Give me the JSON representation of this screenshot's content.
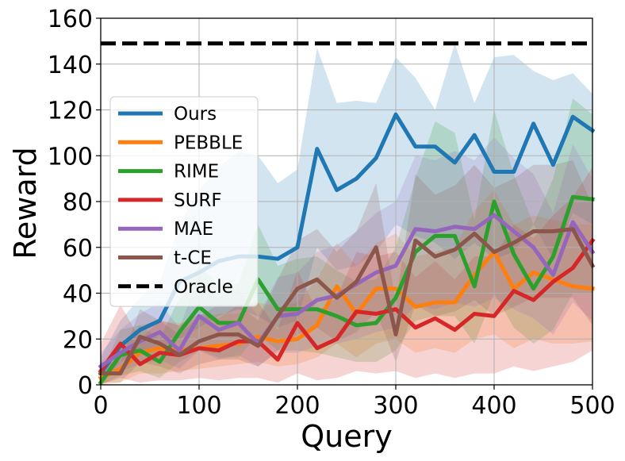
{
  "chart_data": {
    "type": "line",
    "xlabel": "Query",
    "ylabel": "Reward",
    "xlim": [
      0,
      500
    ],
    "ylim": [
      0,
      160
    ],
    "xticks": [
      "0",
      "100",
      "200",
      "300",
      "400",
      "500"
    ],
    "yticks": [
      "0",
      "20",
      "40",
      "60",
      "80",
      "100",
      "120",
      "140",
      "160"
    ],
    "grid": true,
    "legend_position": "center-left",
    "x": [
      0,
      20,
      40,
      60,
      80,
      100,
      120,
      140,
      160,
      180,
      200,
      220,
      240,
      260,
      280,
      300,
      320,
      340,
      360,
      380,
      400,
      420,
      440,
      460,
      480,
      500
    ],
    "series": [
      {
        "name": "Ours",
        "color": "#1f77b4",
        "values": [
          5,
          17,
          24,
          28,
          45,
          49,
          54,
          56,
          56,
          55,
          60,
          103,
          85,
          90,
          99,
          118,
          104,
          104,
          97,
          109,
          93,
          93,
          114,
          96,
          117,
          111
        ],
        "lower": [
          1,
          10,
          14,
          16,
          20,
          25,
          30,
          33,
          30,
          25,
          28,
          60,
          50,
          52,
          58,
          70,
          65,
          62,
          55,
          62,
          55,
          58,
          70,
          55,
          75,
          70
        ],
        "upper": [
          12,
          28,
          38,
          45,
          70,
          85,
          95,
          102,
          100,
          88,
          94,
          147,
          123,
          124,
          123,
          143,
          134,
          120,
          149,
          123,
          143,
          144,
          137,
          133,
          136,
          127
        ]
      },
      {
        "name": "PEBBLE",
        "color": "#ff7f0e",
        "values": [
          3,
          7,
          14,
          16,
          15,
          16,
          17,
          18,
          21,
          19,
          20,
          26,
          43,
          31,
          42,
          42,
          34,
          36,
          36,
          48,
          58,
          42,
          49,
          46,
          43,
          42
        ],
        "lower": [
          0,
          1,
          5,
          5,
          6,
          7,
          8,
          9,
          10,
          8,
          9,
          12,
          18,
          12,
          18,
          20,
          14,
          16,
          14,
          20,
          22,
          16,
          20,
          18,
          18,
          19
        ],
        "upper": [
          10,
          17,
          26,
          28,
          27,
          29,
          31,
          31,
          36,
          34,
          36,
          46,
          62,
          52,
          62,
          66,
          56,
          58,
          60,
          76,
          85,
          70,
          74,
          72,
          70,
          70
        ]
      },
      {
        "name": "RIME",
        "color": "#2ca02c",
        "values": [
          1,
          13,
          15,
          10,
          23,
          34,
          27,
          27,
          46,
          33,
          33,
          33,
          30,
          26,
          27,
          38,
          58,
          65,
          65,
          43,
          80,
          57,
          42,
          56,
          82,
          81
        ],
        "lower": [
          0,
          4,
          6,
          3,
          10,
          15,
          12,
          12,
          22,
          15,
          15,
          14,
          12,
          10,
          10,
          15,
          28,
          30,
          30,
          18,
          40,
          25,
          18,
          24,
          40,
          40
        ],
        "upper": [
          5,
          24,
          26,
          20,
          38,
          52,
          44,
          44,
          70,
          52,
          55,
          56,
          50,
          45,
          46,
          60,
          90,
          115,
          110,
          72,
          120,
          92,
          70,
          90,
          125,
          118
        ]
      },
      {
        "name": "SURF",
        "color": "#d62728",
        "values": [
          6,
          18,
          9,
          14,
          13,
          16,
          15,
          19,
          19,
          11,
          27,
          16,
          20,
          32,
          31,
          33,
          25,
          29,
          24,
          31,
          30,
          41,
          37,
          45,
          51,
          63
        ],
        "lower": [
          0,
          3,
          1,
          2,
          2,
          3,
          2,
          3,
          3,
          1,
          5,
          2,
          3,
          6,
          5,
          6,
          3,
          5,
          3,
          5,
          5,
          8,
          6,
          8,
          10,
          15
        ],
        "upper": [
          18,
          35,
          20,
          28,
          26,
          31,
          29,
          35,
          36,
          24,
          50,
          32,
          38,
          58,
          56,
          58,
          47,
          54,
          46,
          56,
          56,
          70,
          64,
          74,
          82,
          95
        ]
      },
      {
        "name": "MAE",
        "color": "#9467bd",
        "values": [
          8,
          14,
          19,
          23,
          15,
          30,
          24,
          27,
          18,
          30,
          31,
          37,
          39,
          44,
          49,
          52,
          68,
          67,
          69,
          68,
          74,
          67,
          60,
          48,
          71,
          58
        ],
        "lower": [
          3,
          6,
          9,
          11,
          7,
          15,
          11,
          13,
          8,
          14,
          14,
          17,
          18,
          20,
          23,
          25,
          35,
          33,
          36,
          34,
          38,
          33,
          29,
          22,
          36,
          28
        ],
        "upper": [
          14,
          24,
          31,
          36,
          25,
          47,
          38,
          42,
          30,
          47,
          49,
          58,
          61,
          67,
          75,
          80,
          100,
          98,
          102,
          98,
          108,
          99,
          92,
          75,
          105,
          90
        ]
      },
      {
        "name": "t-CE",
        "color": "#8c564b",
        "values": [
          5,
          5,
          21,
          18,
          13,
          19,
          22,
          22,
          17,
          30,
          42,
          46,
          38,
          45,
          60,
          22,
          63,
          56,
          59,
          66,
          58,
          62,
          67,
          67,
          68,
          52
        ],
        "lower": [
          1,
          1,
          10,
          8,
          5,
          9,
          11,
          11,
          8,
          15,
          22,
          25,
          19,
          23,
          32,
          10,
          35,
          30,
          32,
          37,
          30,
          34,
          38,
          38,
          38,
          26
        ],
        "upper": [
          10,
          10,
          33,
          28,
          22,
          30,
          35,
          35,
          28,
          46,
          63,
          68,
          58,
          67,
          88,
          36,
          92,
          83,
          87,
          96,
          86,
          90,
          96,
          96,
          98,
          78
        ]
      }
    ],
    "reference_line": {
      "name": "Oracle",
      "value": 149,
      "color": "#000000",
      "style": "dashed"
    }
  }
}
